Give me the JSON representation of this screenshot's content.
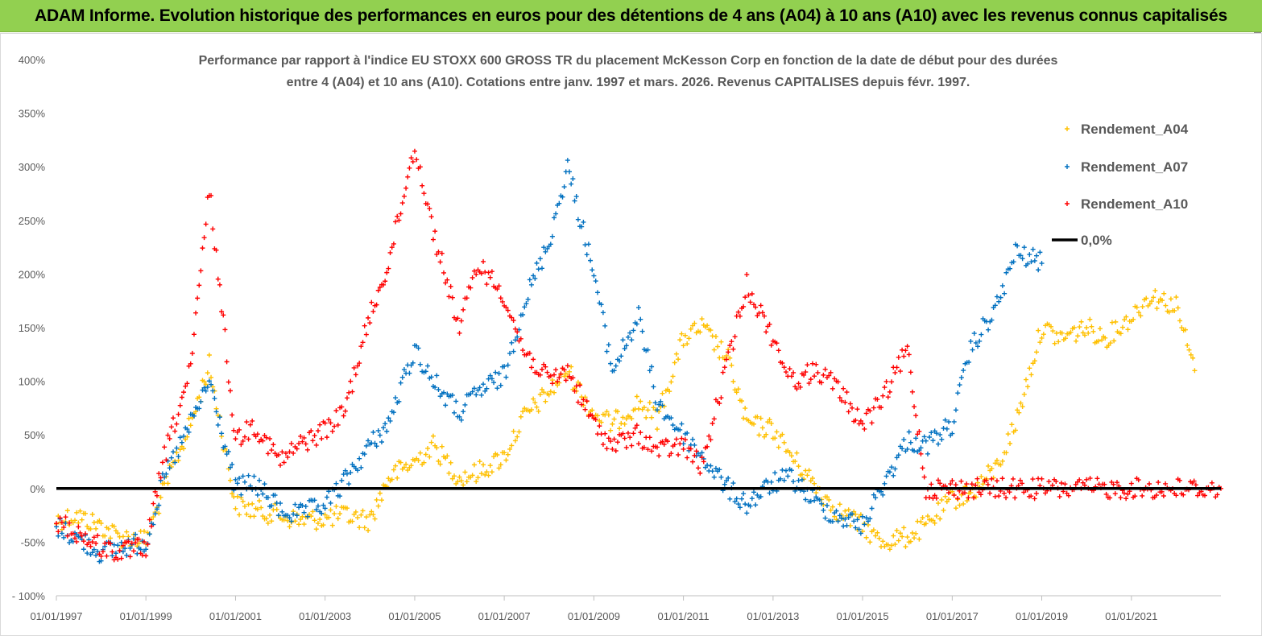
{
  "header": {
    "title": "ADAM Informe. Evolution historique des performances en euros pour des détentions de 4 ans (A04) à 10 ans (A10) avec les revenus connus capitalisés"
  },
  "chart_data": {
    "type": "scatter",
    "title_lines": [
      "Performance par rapport à l'indice EU STOXX 600 GROSS TR  du placement McKesson Corp en fonction de la date de début pour des durées",
      "entre 4 (A04) et 10 ans (A10). Cotations entre janv. 1997 et mars. 2026. Revenus CAPITALISES depuis févr. 1997."
    ],
    "xlabel": "",
    "ylabel": "",
    "x_range": [
      "1997-01-01",
      "2023-01-01"
    ],
    "x_tick_labels": [
      "01/01/1997",
      "01/01/1999",
      "01/01/2001",
      "01/01/2003",
      "01/01/2005",
      "01/01/2007",
      "01/01/2009",
      "01/01/2011",
      "01/01/2013",
      "01/01/2015",
      "01/01/2017",
      "01/01/2019",
      "01/01/2021"
    ],
    "ylim": [
      -100,
      400
    ],
    "y_tick_values": [
      -100,
      -50,
      0,
      50,
      100,
      150,
      200,
      250,
      300,
      350,
      400
    ],
    "y_tick_labels": [
      "- 100%",
      "-50%",
      "0%",
      "50%",
      "100%",
      "150%",
      "200%",
      "250%",
      "300%",
      "350%",
      "400%"
    ],
    "legend_position": "right",
    "series": [
      {
        "name": "Rendement_A04",
        "color": "#ffc000",
        "marker": "plus",
        "x": [
          "1997-01",
          "1997-06",
          "1998-01",
          "1998-06",
          "1999-01",
          "1999-06",
          "2000-01",
          "2000-06",
          "2001-01",
          "2001-06",
          "2002-01",
          "2002-06",
          "2003-01",
          "2003-06",
          "2004-01",
          "2004-06",
          "2005-01",
          "2005-06",
          "2006-01",
          "2006-06",
          "2007-01",
          "2007-06",
          "2008-01",
          "2008-06",
          "2009-01",
          "2009-06",
          "2010-01",
          "2010-06",
          "2011-01",
          "2011-06",
          "2012-01",
          "2012-06",
          "2013-01",
          "2013-06",
          "2014-01",
          "2014-06",
          "2015-01",
          "2015-06",
          "2016-01",
          "2016-06",
          "2017-01",
          "2017-06",
          "2018-01",
          "2018-06",
          "2019-01",
          "2019-06",
          "2020-01",
          "2020-06",
          "2021-01",
          "2021-06",
          "2022-01",
          "2022-06"
        ],
        "y": [
          -30,
          -25,
          -35,
          -45,
          -48,
          0,
          60,
          115,
          -15,
          -20,
          -25,
          -30,
          -28,
          -25,
          -30,
          10,
          25,
          40,
          10,
          15,
          30,
          65,
          90,
          110,
          70,
          60,
          80,
          65,
          140,
          150,
          120,
          60,
          55,
          30,
          0,
          -20,
          -35,
          -50,
          -45,
          -35,
          -10,
          -5,
          20,
          60,
          150,
          140,
          150,
          140,
          160,
          180,
          170,
          110
        ]
      },
      {
        "name": "Rendement_A07",
        "color": "#0070c0",
        "marker": "plus",
        "x": [
          "1997-01",
          "1997-06",
          "1998-01",
          "1998-06",
          "1999-01",
          "1999-06",
          "2000-01",
          "2000-06",
          "2001-01",
          "2001-06",
          "2002-01",
          "2002-06",
          "2003-01",
          "2003-06",
          "2004-01",
          "2004-06",
          "2005-01",
          "2005-06",
          "2006-01",
          "2006-06",
          "2007-01",
          "2007-06",
          "2008-01",
          "2008-06",
          "2009-01",
          "2009-06",
          "2010-01",
          "2010-06",
          "2011-01",
          "2011-06",
          "2012-01",
          "2012-06",
          "2013-01",
          "2013-06",
          "2014-01",
          "2014-06",
          "2015-01",
          "2015-06",
          "2016-01",
          "2016-06",
          "2017-01",
          "2017-06",
          "2018-01",
          "2018-06",
          "2019-01"
        ],
        "y": [
          -35,
          -45,
          -60,
          -55,
          -50,
          10,
          60,
          100,
          0,
          5,
          -20,
          -25,
          -15,
          5,
          40,
          60,
          130,
          100,
          70,
          90,
          105,
          170,
          230,
          300,
          200,
          110,
          160,
          80,
          50,
          30,
          0,
          -15,
          5,
          10,
          -15,
          -25,
          -35,
          0,
          45,
          40,
          60,
          130,
          170,
          220,
          210
        ]
      },
      {
        "name": "Rendement_A10",
        "color": "#ff0000",
        "marker": "plus",
        "x": [
          "1997-01",
          "1997-06",
          "1998-01",
          "1998-06",
          "1999-01",
          "1999-06",
          "2000-01",
          "2000-06",
          "2001-01",
          "2001-06",
          "2002-01",
          "2002-06",
          "2003-01",
          "2003-06",
          "2004-01",
          "2004-06",
          "2005-01",
          "2005-06",
          "2006-01",
          "2006-06",
          "2007-01",
          "2007-06",
          "2008-01",
          "2008-06",
          "2009-01",
          "2009-06",
          "2010-01",
          "2010-06",
          "2011-01",
          "2011-06",
          "2012-01",
          "2012-06",
          "2013-01",
          "2013-06",
          "2014-01",
          "2014-06",
          "2015-01",
          "2015-06",
          "2016-01",
          "2016-06",
          "2017-01",
          "2018-01",
          "2019-01",
          "2020-01",
          "2021-01",
          "2022-01",
          "2023-01"
        ],
        "y": [
          -30,
          -40,
          -55,
          -60,
          -55,
          30,
          110,
          280,
          45,
          60,
          25,
          40,
          55,
          70,
          160,
          210,
          320,
          240,
          150,
          210,
          180,
          130,
          100,
          110,
          60,
          40,
          50,
          35,
          40,
          20,
          120,
          190,
          140,
          100,
          110,
          95,
          60,
          80,
          130,
          0,
          0,
          0,
          0,
          0,
          0,
          0,
          0
        ]
      },
      {
        "name": "0,0%",
        "color": "#000000",
        "marker": "line",
        "x": [
          "1997-01-01",
          "2023-01-01"
        ],
        "y": [
          0,
          0
        ]
      }
    ]
  }
}
